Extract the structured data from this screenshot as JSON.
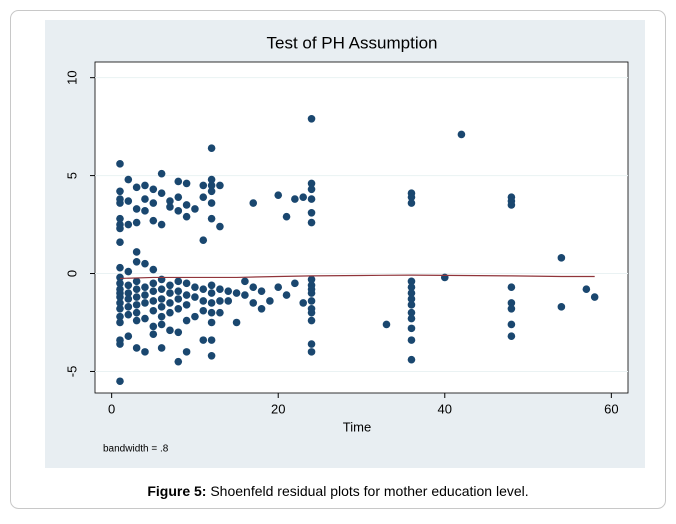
{
  "chart_data": {
    "type": "scatter",
    "title": "Test of PH Assumption",
    "x_label": "Time",
    "annotation": "bandwidth = .8",
    "xlim": [
      -2,
      62
    ],
    "ylim": [
      -6.1,
      10.8
    ],
    "xticks": [
      0,
      20,
      40,
      60
    ],
    "yticks": [
      -5,
      0,
      5,
      10
    ],
    "grid": true,
    "series": [
      {
        "type": "scatter",
        "color": "#1a476f",
        "x": [
          1,
          1,
          1,
          1,
          1,
          1,
          1,
          1,
          1,
          1,
          1,
          1,
          1,
          1,
          1,
          1,
          1,
          1,
          1,
          1,
          1,
          2,
          2,
          2,
          2,
          2,
          2,
          2,
          2,
          2,
          2,
          3,
          3,
          3,
          3,
          3,
          3,
          3,
          3,
          3,
          3,
          3,
          3,
          4,
          4,
          4,
          4,
          4,
          4,
          4,
          4,
          4,
          5,
          5,
          5,
          5,
          5,
          5,
          5,
          5,
          5,
          5,
          6,
          6,
          6,
          6,
          6,
          6,
          6,
          6,
          6,
          6,
          7,
          7,
          7,
          7,
          7,
          7,
          7,
          8,
          8,
          8,
          8,
          8,
          8,
          8,
          8,
          8,
          9,
          9,
          9,
          9,
          9,
          9,
          9,
          9,
          10,
          10,
          10,
          10,
          11,
          11,
          11,
          11,
          11,
          11,
          11,
          12,
          12,
          12,
          12,
          12,
          12,
          12,
          12,
          12,
          12,
          12,
          12,
          12,
          13,
          13,
          13,
          13,
          13,
          14,
          14,
          15,
          15,
          16,
          16,
          17,
          17,
          17,
          18,
          18,
          19,
          20,
          20,
          21,
          21,
          22,
          22,
          23,
          23,
          24,
          24,
          24,
          24,
          24,
          24,
          24,
          24,
          24,
          24,
          24,
          24,
          24,
          24,
          24,
          24,
          33,
          36,
          36,
          36,
          36,
          36,
          36,
          36,
          36,
          36,
          36,
          36,
          36,
          36,
          40,
          42,
          48,
          48,
          48,
          48,
          48,
          48,
          48,
          48,
          54,
          54,
          57,
          58
        ],
        "values": [
          5.6,
          4.2,
          3.8,
          3.6,
          2.8,
          2.5,
          2.3,
          1.6,
          0.3,
          -0.2,
          -0.5,
          -0.8,
          -1.0,
          -1.2,
          -1.5,
          -1.8,
          -2.2,
          -2.5,
          -3.4,
          -3.6,
          -5.5,
          4.8,
          3.7,
          2.5,
          0.1,
          -0.6,
          -1.0,
          -1.3,
          -1.7,
          -2.1,
          -3.2,
          4.4,
          3.3,
          2.6,
          1.1,
          0.6,
          -0.4,
          -0.8,
          -1.2,
          -1.6,
          -2.0,
          -2.4,
          -3.8,
          4.5,
          3.8,
          3.2,
          0.5,
          -0.7,
          -1.1,
          -1.5,
          -2.3,
          -4.0,
          4.3,
          3.6,
          2.7,
          0.2,
          -0.5,
          -0.9,
          -1.4,
          -1.9,
          -2.7,
          -3.1,
          5.1,
          4.1,
          2.5,
          -0.3,
          -0.8,
          -1.3,
          -1.7,
          -2.2,
          -2.6,
          -3.8,
          3.7,
          3.4,
          -0.6,
          -1.0,
          -1.5,
          -2.0,
          -2.9,
          4.7,
          3.9,
          3.2,
          -0.4,
          -0.9,
          -1.3,
          -1.8,
          -3.0,
          -4.5,
          4.6,
          3.5,
          2.9,
          -0.5,
          -1.1,
          -1.6,
          -2.4,
          -4.0,
          3.3,
          -0.7,
          -1.2,
          -2.2,
          4.5,
          3.9,
          1.7,
          -0.8,
          -1.4,
          -1.9,
          -3.4,
          6.4,
          4.8,
          4.5,
          4.2,
          3.6,
          2.8,
          -0.6,
          -1.0,
          -1.5,
          -2.0,
          -2.5,
          -3.4,
          -4.2,
          4.5,
          2.4,
          -0.8,
          -1.4,
          -2.0,
          -0.9,
          -1.4,
          -1.0,
          -2.5,
          -0.4,
          -1.1,
          3.6,
          -0.7,
          -1.5,
          -0.9,
          -1.8,
          -1.4,
          4.0,
          -0.7,
          -1.1,
          2.9,
          3.8,
          -0.5,
          3.9,
          -1.5,
          7.9,
          4.6,
          4.3,
          3.8,
          3.1,
          2.6,
          -0.3,
          -0.6,
          -1.0,
          -1.4,
          -1.8,
          -2.4,
          -3.6,
          -4.0,
          -2.0,
          -0.8,
          -2.6,
          4.1,
          3.9,
          3.6,
          -0.4,
          -0.7,
          -1.0,
          -1.3,
          -1.6,
          -2.0,
          -2.3,
          -2.8,
          -3.4,
          -4.4,
          -0.2,
          7.1,
          3.9,
          3.7,
          3.5,
          -0.7,
          -1.5,
          -1.8,
          -2.6,
          -3.2,
          0.8,
          -1.7,
          -0.8,
          -1.2
        ]
      },
      {
        "type": "line",
        "color": "#90353b",
        "x": [
          1,
          5,
          10,
          15,
          20,
          24,
          30,
          36,
          42,
          48,
          54,
          58
        ],
        "values": [
          -0.25,
          -0.2,
          -0.2,
          -0.2,
          -0.15,
          -0.12,
          -0.1,
          -0.08,
          -0.1,
          -0.12,
          -0.15,
          -0.15
        ]
      }
    ]
  },
  "caption": {
    "label": "Figure 5:",
    "text": "Shoenfeld residual plots for mother education level."
  }
}
